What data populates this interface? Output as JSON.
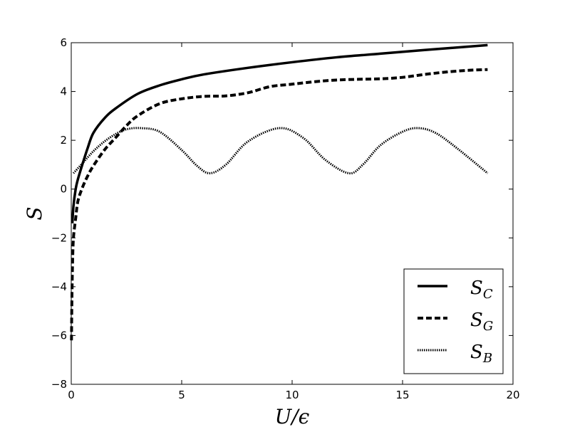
{
  "chart_data": {
    "type": "line",
    "xlabel": "U/ϵ",
    "ylabel": "S",
    "xlim": [
      0,
      20
    ],
    "ylim": [
      -8,
      6
    ],
    "xticks": [
      0,
      5,
      10,
      15,
      20
    ],
    "yticks": [
      -8,
      -6,
      -4,
      -2,
      0,
      2,
      4,
      6
    ],
    "grid": false,
    "legend_position": "lower-right",
    "series": [
      {
        "name": "S_C",
        "label_main": "S",
        "label_sub": "C",
        "style": "solid",
        "x": [
          0.05,
          0.1,
          0.2,
          0.3,
          0.5,
          0.75,
          1.0,
          1.5,
          2.0,
          3.0,
          4.0,
          5.0,
          6.0,
          8.0,
          10.0,
          12.0,
          14.0,
          16.0,
          18.85
        ],
        "y": [
          -1.4,
          -0.7,
          0.0,
          0.4,
          1.0,
          1.7,
          2.3,
          2.9,
          3.3,
          3.9,
          4.25,
          4.5,
          4.7,
          4.97,
          5.2,
          5.4,
          5.55,
          5.7,
          5.9
        ]
      },
      {
        "name": "S_G",
        "label_main": "S",
        "label_sub": "G",
        "style": "dashed",
        "x": [
          0.01,
          0.03,
          0.06,
          0.1,
          0.2,
          0.3,
          0.5,
          0.75,
          1.0,
          1.5,
          2.0,
          2.5,
          3.0,
          4.0,
          5.0,
          6.0,
          7.0,
          8.0,
          9.0,
          10.0,
          11.0,
          12.0,
          13.0,
          14.0,
          15.0,
          16.0,
          17.0,
          18.0,
          18.85
        ],
        "y": [
          -6.2,
          -4.5,
          -3.0,
          -2.0,
          -1.2,
          -0.5,
          0.05,
          0.55,
          0.95,
          1.6,
          2.1,
          2.6,
          3.0,
          3.5,
          3.7,
          3.8,
          3.82,
          3.95,
          4.2,
          4.3,
          4.4,
          4.47,
          4.5,
          4.52,
          4.58,
          4.7,
          4.8,
          4.87,
          4.9
        ]
      },
      {
        "name": "S_B",
        "label_main": "S",
        "label_sub": "B",
        "style": "dotted",
        "x": [
          0.1,
          0.5,
          1.0,
          1.5,
          2.0,
          2.5,
          3.14,
          4.0,
          5.0,
          5.7,
          6.28,
          7.0,
          8.0,
          9.42,
          10.5,
          11.5,
          12.57,
          13.2,
          14.0,
          15.0,
          15.71,
          16.5,
          17.5,
          18.85
        ],
        "y": [
          0.65,
          1.05,
          1.55,
          1.95,
          2.25,
          2.45,
          2.5,
          2.35,
          1.6,
          0.95,
          0.65,
          1.0,
          1.95,
          2.5,
          2.1,
          1.2,
          0.65,
          1.0,
          1.8,
          2.35,
          2.5,
          2.3,
          1.65,
          0.65
        ]
      }
    ]
  }
}
